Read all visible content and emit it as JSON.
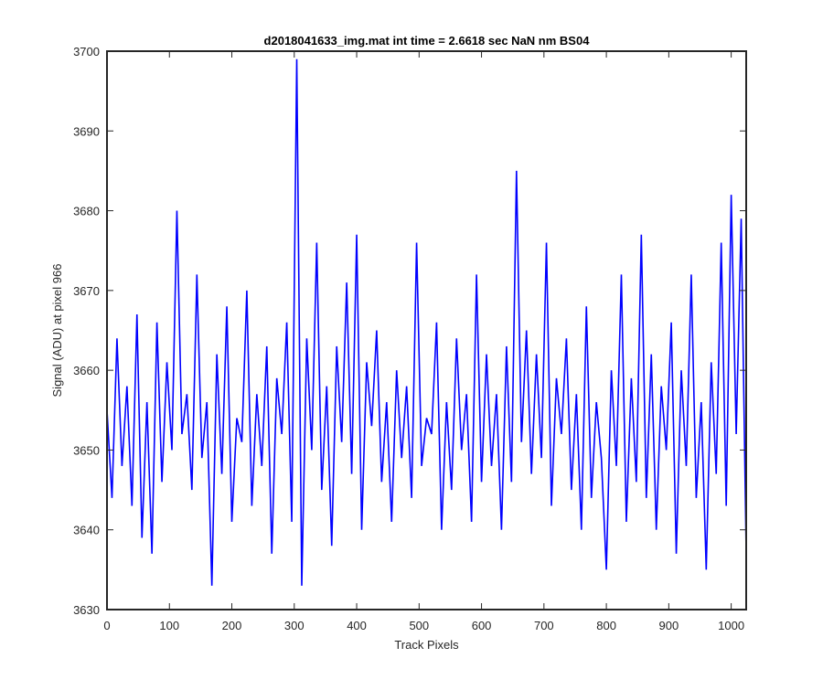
{
  "chart_data": {
    "type": "line",
    "title": "d2018041633_img.mat int time = 2.6618 sec  NaN nm BS04",
    "xlabel": "Track Pixels",
    "ylabel": "Signal (ADU) at pixel 966",
    "xlim": [
      0,
      1024
    ],
    "ylim": [
      3630,
      3700
    ],
    "xticks": [
      0,
      100,
      200,
      300,
      400,
      500,
      600,
      700,
      800,
      900,
      1000
    ],
    "yticks": [
      3630,
      3640,
      3650,
      3660,
      3670,
      3680,
      3690,
      3700
    ],
    "grid": false,
    "legend": "none",
    "series": [
      {
        "color": "#0000ff",
        "x": [
          0,
          8,
          16,
          24,
          32,
          40,
          48,
          56,
          64,
          72,
          80,
          88,
          96,
          104,
          112,
          120,
          128,
          136,
          144,
          152,
          160,
          168,
          176,
          184,
          192,
          200,
          208,
          216,
          224,
          232,
          240,
          248,
          256,
          264,
          272,
          280,
          288,
          296,
          304,
          312,
          320,
          328,
          336,
          344,
          352,
          360,
          368,
          376,
          384,
          392,
          400,
          408,
          416,
          424,
          432,
          440,
          448,
          456,
          464,
          472,
          480,
          488,
          496,
          504,
          512,
          520,
          528,
          536,
          544,
          552,
          560,
          568,
          576,
          584,
          592,
          600,
          608,
          616,
          624,
          632,
          640,
          648,
          656,
          664,
          672,
          680,
          688,
          696,
          704,
          712,
          720,
          728,
          736,
          744,
          752,
          760,
          768,
          776,
          784,
          792,
          800,
          808,
          816,
          824,
          832,
          840,
          848,
          856,
          864,
          872,
          880,
          888,
          896,
          904,
          912,
          920,
          928,
          936,
          944,
          952,
          960,
          968,
          976,
          984,
          992,
          1000,
          1008,
          1016,
          1024
        ],
        "y": [
          3655,
          3644,
          3664,
          3648,
          3658,
          3643,
          3667,
          3639,
          3656,
          3637,
          3666,
          3646,
          3661,
          3650,
          3680,
          3652,
          3657,
          3645,
          3672,
          3649,
          3656,
          3633,
          3662,
          3647,
          3668,
          3641,
          3654,
          3651,
          3670,
          3643,
          3657,
          3648,
          3663,
          3637,
          3659,
          3652,
          3666,
          3641,
          3699,
          3633,
          3664,
          3650,
          3676,
          3645,
          3658,
          3638,
          3663,
          3651,
          3671,
          3647,
          3677,
          3640,
          3661,
          3653,
          3665,
          3646,
          3656,
          3641,
          3660,
          3649,
          3658,
          3644,
          3676,
          3648,
          3654,
          3652,
          3666,
          3640,
          3656,
          3645,
          3664,
          3650,
          3657,
          3641,
          3672,
          3646,
          3662,
          3648,
          3657,
          3640,
          3663,
          3646,
          3685,
          3651,
          3665,
          3647,
          3662,
          3649,
          3676,
          3643,
          3659,
          3652,
          3664,
          3645,
          3657,
          3640,
          3668,
          3644,
          3656,
          3649,
          3635,
          3660,
          3648,
          3672,
          3641,
          3659,
          3646,
          3677,
          3644,
          3662,
          3640,
          3658,
          3650,
          3666,
          3637,
          3660,
          3648,
          3672,
          3644,
          3656,
          3635,
          3661,
          3647,
          3676,
          3643,
          3682,
          3652,
          3679,
          3637
        ]
      }
    ]
  }
}
